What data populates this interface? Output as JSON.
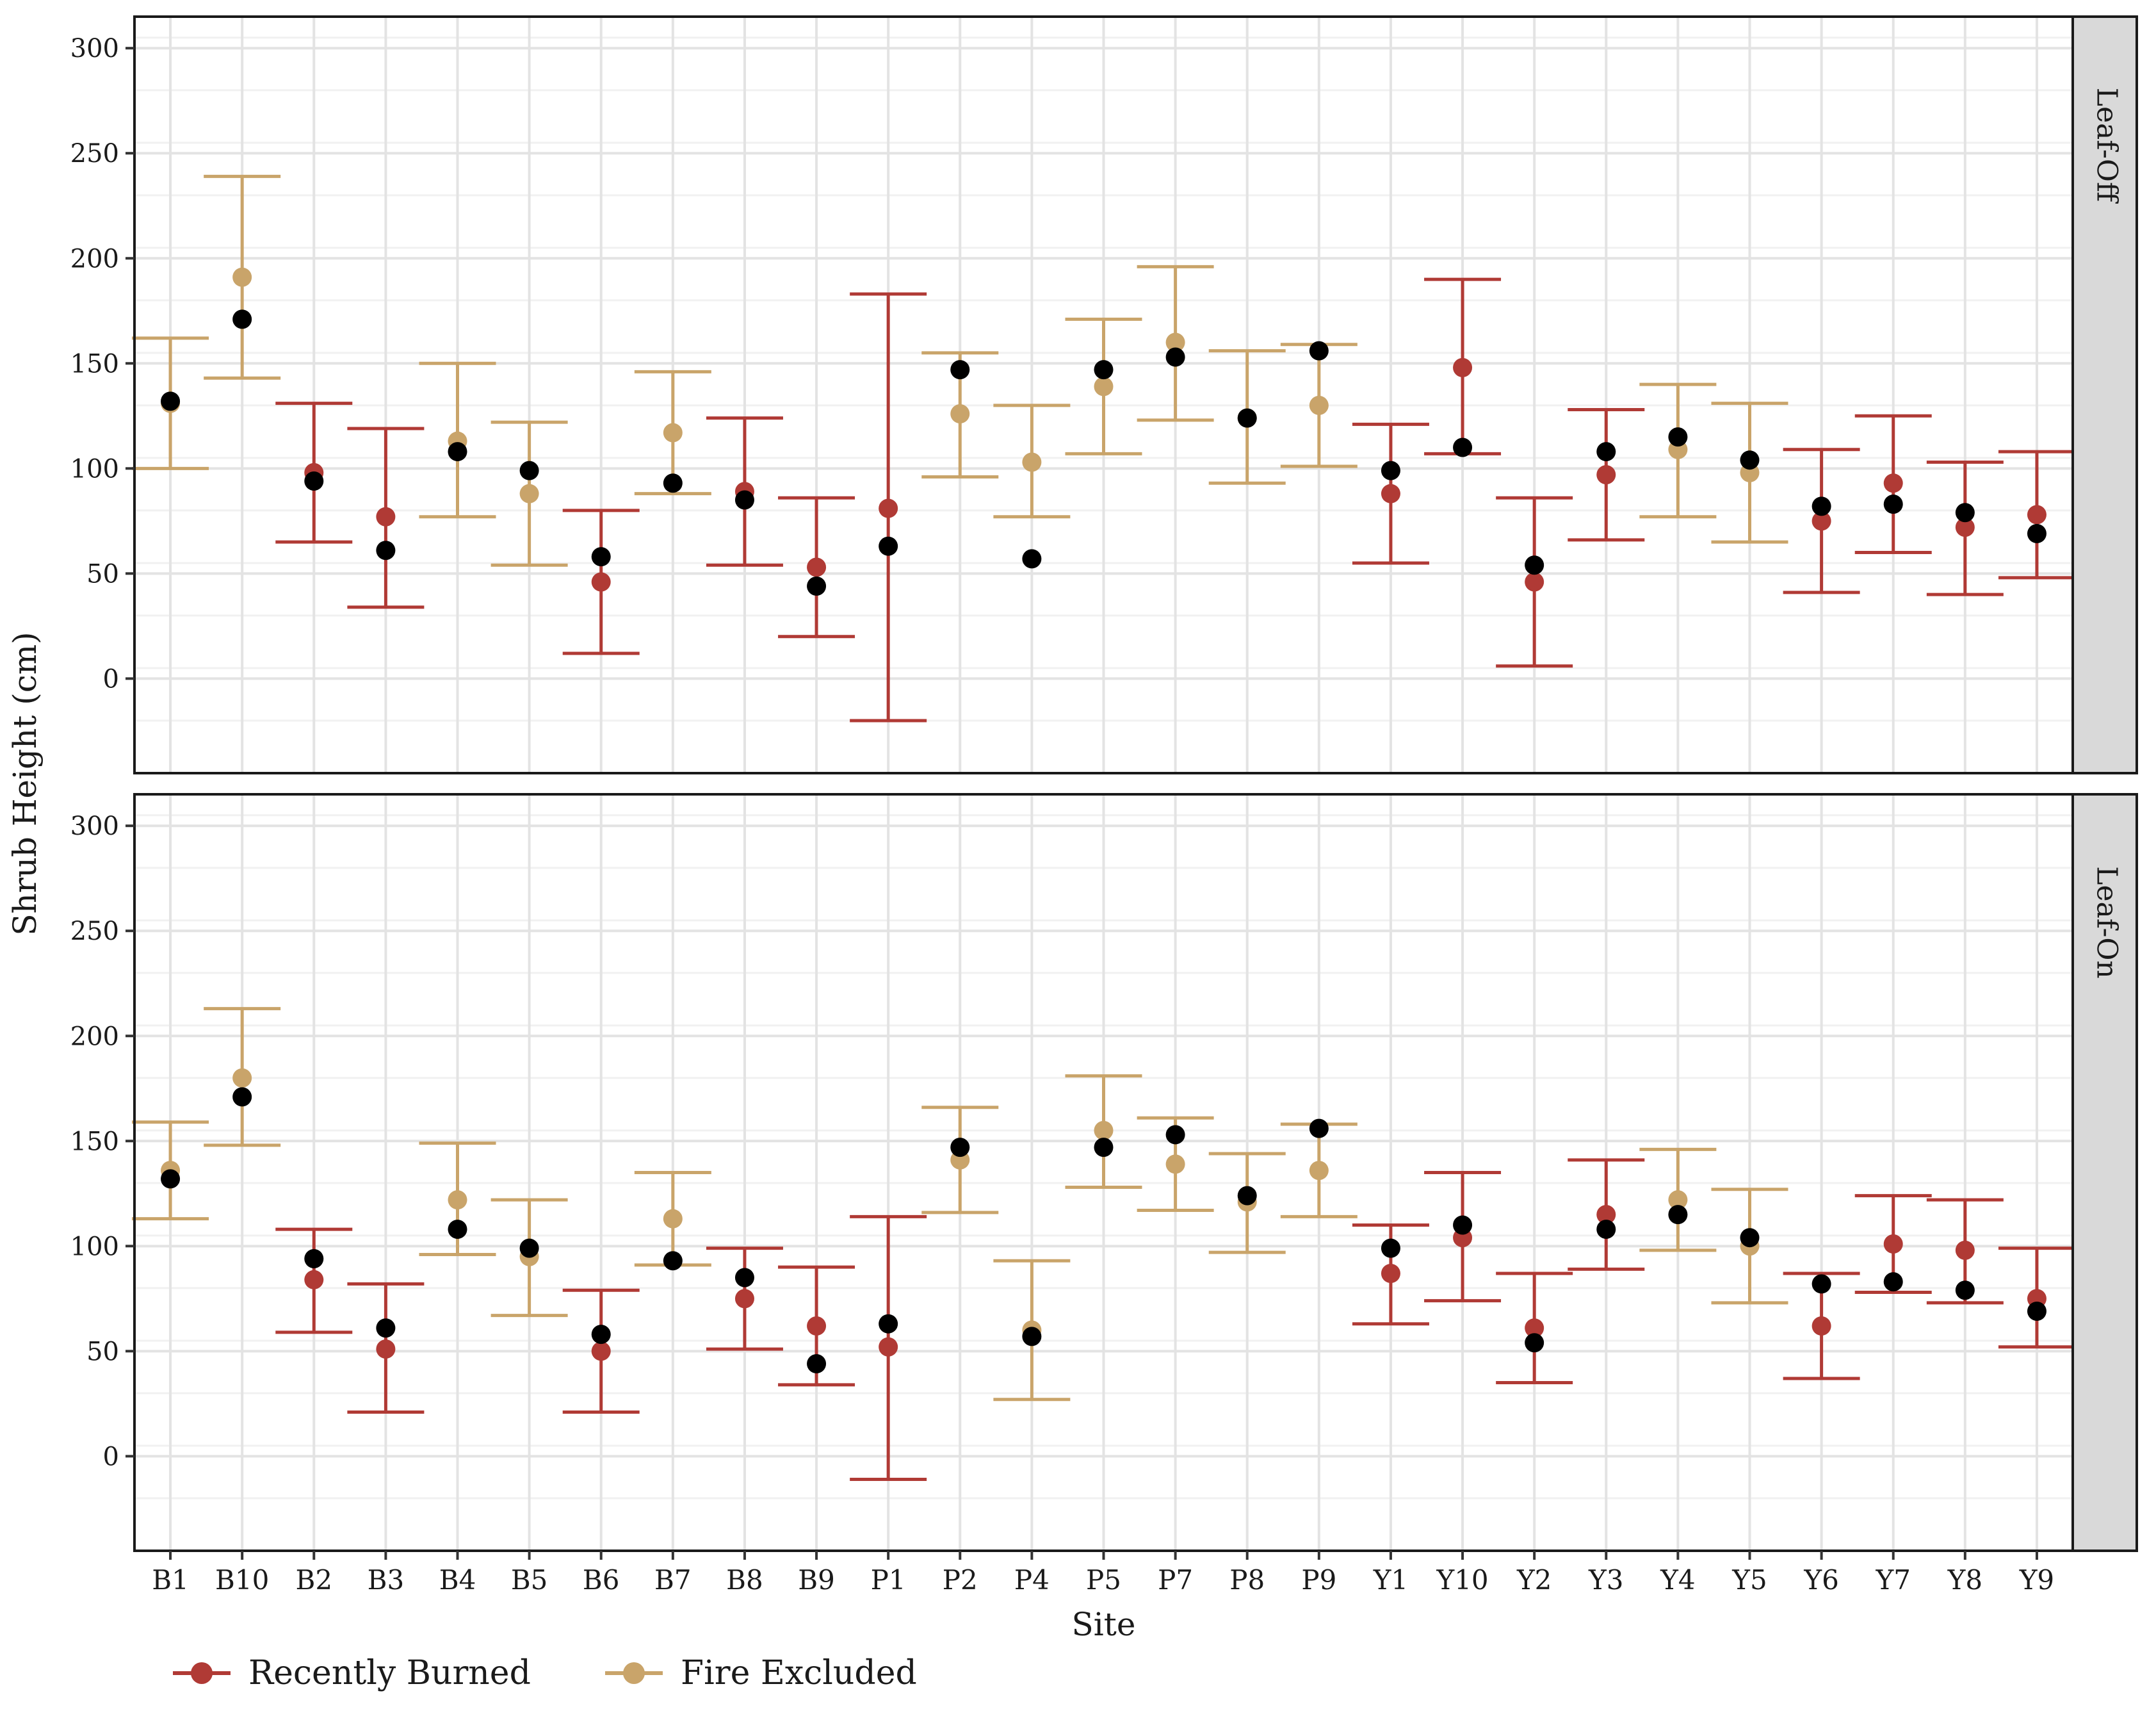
{
  "chart_data": {
    "type": "scatter",
    "subtype": "point-with-error-bars, faceted",
    "xlabel": "Site",
    "ylabel": "Shrub Height (cm)",
    "ylim": [
      -45,
      315
    ],
    "yticks": [
      0,
      50,
      100,
      150,
      200,
      250,
      300
    ],
    "grid": true,
    "legend_position": "bottom-left",
    "categories": [
      "B1",
      "B10",
      "B2",
      "B3",
      "B4",
      "B5",
      "B6",
      "B7",
      "B8",
      "B9",
      "P1",
      "P2",
      "P4",
      "P5",
      "P7",
      "P8",
      "P9",
      "Y1",
      "Y10",
      "Y2",
      "Y3",
      "Y4",
      "Y5",
      "Y6",
      "Y7",
      "Y8",
      "Y9"
    ],
    "legend": [
      {
        "name": "Recently Burned",
        "color": "#B03A35"
      },
      {
        "name": "Fire Excluded",
        "color": "#C9A46A"
      }
    ],
    "group_color_key": {
      "RB": "#B03A35",
      "FE": "#C9A46A"
    },
    "observed_point_color": "#000000",
    "panels": [
      {
        "strip_label": "Leaf-Off",
        "points": [
          {
            "site": "B1",
            "group": "FE",
            "mean": 131,
            "lo": 100,
            "hi": 162,
            "obs": 132
          },
          {
            "site": "B10",
            "group": "FE",
            "mean": 191,
            "lo": 143,
            "hi": 239,
            "obs": 171
          },
          {
            "site": "B2",
            "group": "RB",
            "mean": 98,
            "lo": 65,
            "hi": 131,
            "obs": 94
          },
          {
            "site": "B3",
            "group": "RB",
            "mean": 77,
            "lo": 34,
            "hi": 119,
            "obs": 61
          },
          {
            "site": "B4",
            "group": "FE",
            "mean": 113,
            "lo": 77,
            "hi": 150,
            "obs": 108
          },
          {
            "site": "B5",
            "group": "FE",
            "mean": 88,
            "lo": 54,
            "hi": 122,
            "obs": 99
          },
          {
            "site": "B6",
            "group": "RB",
            "mean": 46,
            "lo": 12,
            "hi": 80,
            "obs": 58
          },
          {
            "site": "B7",
            "group": "FE",
            "mean": 117,
            "lo": 88,
            "hi": 146,
            "obs": 93
          },
          {
            "site": "B8",
            "group": "RB",
            "mean": 89,
            "lo": 54,
            "hi": 124,
            "obs": 85
          },
          {
            "site": "B9",
            "group": "RB",
            "mean": 53,
            "lo": 20,
            "hi": 86,
            "obs": 44
          },
          {
            "site": "P1",
            "group": "RB",
            "mean": 81,
            "lo": -20,
            "hi": 183,
            "obs": 63
          },
          {
            "site": "P2",
            "group": "FE",
            "mean": 126,
            "lo": 96,
            "hi": 155,
            "obs": 147
          },
          {
            "site": "P4",
            "group": "FE",
            "mean": 103,
            "lo": 77,
            "hi": 130,
            "obs": 57
          },
          {
            "site": "P5",
            "group": "FE",
            "mean": 139,
            "lo": 107,
            "hi": 171,
            "obs": 147
          },
          {
            "site": "P7",
            "group": "FE",
            "mean": 160,
            "lo": 123,
            "hi": 196,
            "obs": 153
          },
          {
            "site": "P8",
            "group": "FE",
            "mean": 124,
            "lo": 93,
            "hi": 156,
            "obs": 124
          },
          {
            "site": "P9",
            "group": "FE",
            "mean": 130,
            "lo": 101,
            "hi": 159,
            "obs": 156
          },
          {
            "site": "Y1",
            "group": "RB",
            "mean": 88,
            "lo": 55,
            "hi": 121,
            "obs": 99
          },
          {
            "site": "Y10",
            "group": "RB",
            "mean": 148,
            "lo": 107,
            "hi": 190,
            "obs": 110
          },
          {
            "site": "Y2",
            "group": "RB",
            "mean": 46,
            "lo": 6,
            "hi": 86,
            "obs": 54
          },
          {
            "site": "Y3",
            "group": "RB",
            "mean": 97,
            "lo": 66,
            "hi": 128,
            "obs": 108
          },
          {
            "site": "Y4",
            "group": "FE",
            "mean": 109,
            "lo": 77,
            "hi": 140,
            "obs": 115
          },
          {
            "site": "Y5",
            "group": "FE",
            "mean": 98,
            "lo": 65,
            "hi": 131,
            "obs": 104
          },
          {
            "site": "Y6",
            "group": "RB",
            "mean": 75,
            "lo": 41,
            "hi": 109,
            "obs": 82
          },
          {
            "site": "Y7",
            "group": "RB",
            "mean": 93,
            "lo": 60,
            "hi": 125,
            "obs": 83
          },
          {
            "site": "Y8",
            "group": "RB",
            "mean": 72,
            "lo": 40,
            "hi": 103,
            "obs": 79
          },
          {
            "site": "Y9",
            "group": "RB",
            "mean": 78,
            "lo": 48,
            "hi": 108,
            "obs": 69
          }
        ]
      },
      {
        "strip_label": "Leaf-On",
        "points": [
          {
            "site": "B1",
            "group": "FE",
            "mean": 136,
            "lo": 113,
            "hi": 159,
            "obs": 132
          },
          {
            "site": "B10",
            "group": "FE",
            "mean": 180,
            "lo": 148,
            "hi": 213,
            "obs": 171
          },
          {
            "site": "B2",
            "group": "RB",
            "mean": 84,
            "lo": 59,
            "hi": 108,
            "obs": 94
          },
          {
            "site": "B3",
            "group": "RB",
            "mean": 51,
            "lo": 21,
            "hi": 82,
            "obs": 61
          },
          {
            "site": "B4",
            "group": "FE",
            "mean": 122,
            "lo": 96,
            "hi": 149,
            "obs": 108
          },
          {
            "site": "B5",
            "group": "FE",
            "mean": 95,
            "lo": 67,
            "hi": 122,
            "obs": 99
          },
          {
            "site": "B6",
            "group": "RB",
            "mean": 50,
            "lo": 21,
            "hi": 79,
            "obs": 58
          },
          {
            "site": "B7",
            "group": "FE",
            "mean": 113,
            "lo": 91,
            "hi": 135,
            "obs": 93
          },
          {
            "site": "B8",
            "group": "RB",
            "mean": 75,
            "lo": 51,
            "hi": 99,
            "obs": 85
          },
          {
            "site": "B9",
            "group": "RB",
            "mean": 62,
            "lo": 34,
            "hi": 90,
            "obs": 44
          },
          {
            "site": "P1",
            "group": "RB",
            "mean": 52,
            "lo": -11,
            "hi": 114,
            "obs": 63
          },
          {
            "site": "P2",
            "group": "FE",
            "mean": 141,
            "lo": 116,
            "hi": 166,
            "obs": 147
          },
          {
            "site": "P4",
            "group": "FE",
            "mean": 60,
            "lo": 27,
            "hi": 93,
            "obs": 57
          },
          {
            "site": "P5",
            "group": "FE",
            "mean": 155,
            "lo": 128,
            "hi": 181,
            "obs": 147
          },
          {
            "site": "P7",
            "group": "FE",
            "mean": 139,
            "lo": 117,
            "hi": 161,
            "obs": 153
          },
          {
            "site": "P8",
            "group": "FE",
            "mean": 121,
            "lo": 97,
            "hi": 144,
            "obs": 124
          },
          {
            "site": "P9",
            "group": "FE",
            "mean": 136,
            "lo": 114,
            "hi": 158,
            "obs": 156
          },
          {
            "site": "Y1",
            "group": "RB",
            "mean": 87,
            "lo": 63,
            "hi": 110,
            "obs": 99
          },
          {
            "site": "Y10",
            "group": "RB",
            "mean": 104,
            "lo": 74,
            "hi": 135,
            "obs": 110
          },
          {
            "site": "Y2",
            "group": "RB",
            "mean": 61,
            "lo": 35,
            "hi": 87,
            "obs": 54
          },
          {
            "site": "Y3",
            "group": "RB",
            "mean": 115,
            "lo": 89,
            "hi": 141,
            "obs": 108
          },
          {
            "site": "Y4",
            "group": "FE",
            "mean": 122,
            "lo": 98,
            "hi": 146,
            "obs": 115
          },
          {
            "site": "Y5",
            "group": "FE",
            "mean": 100,
            "lo": 73,
            "hi": 127,
            "obs": 104
          },
          {
            "site": "Y6",
            "group": "RB",
            "mean": 62,
            "lo": 37,
            "hi": 87,
            "obs": 82
          },
          {
            "site": "Y7",
            "group": "RB",
            "mean": 101,
            "lo": 78,
            "hi": 124,
            "obs": 83
          },
          {
            "site": "Y8",
            "group": "RB",
            "mean": 98,
            "lo": 73,
            "hi": 122,
            "obs": 79
          },
          {
            "site": "Y9",
            "group": "RB",
            "mean": 75,
            "lo": 52,
            "hi": 99,
            "obs": 69
          }
        ]
      }
    ]
  }
}
